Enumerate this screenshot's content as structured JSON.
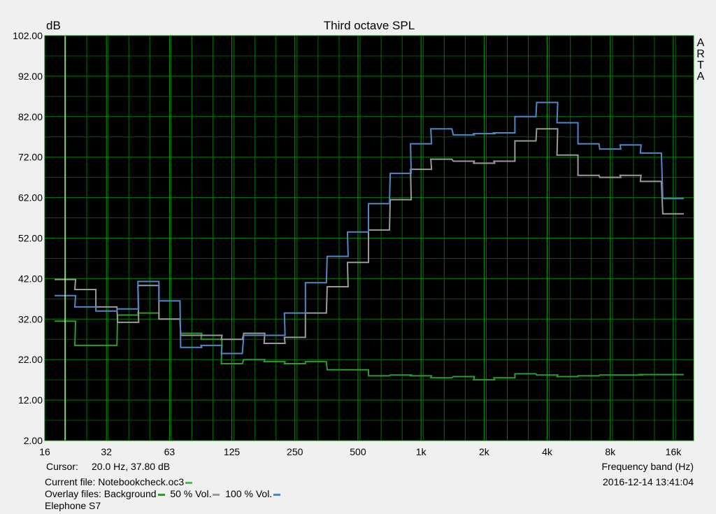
{
  "chart_data": {
    "type": "line",
    "title": "Third octave SPL",
    "ylabel": "dB",
    "xlabel": "Frequency band (Hz)",
    "watermark": "ARTA",
    "ylim": [
      2,
      102
    ],
    "y_ticks": [
      "102.00",
      "92.00",
      "82.00",
      "72.00",
      "62.00",
      "52.00",
      "42.00",
      "32.00",
      "22.00",
      "12.00",
      "2.00"
    ],
    "x_scale": "log",
    "xlim": [
      16,
      20000
    ],
    "x_ticks": [
      {
        "label": "16",
        "value": 16
      },
      {
        "label": "32",
        "value": 31.5
      },
      {
        "label": "63",
        "value": 63
      },
      {
        "label": "125",
        "value": 125
      },
      {
        "label": "250",
        "value": 250
      },
      {
        "label": "500",
        "value": 500
      },
      {
        "label": "1k",
        "value": 1000
      },
      {
        "label": "2k",
        "value": 2000
      },
      {
        "label": "4k",
        "value": 4000
      },
      {
        "label": "8k",
        "value": 8000
      },
      {
        "label": "16k",
        "value": 16000
      }
    ],
    "grid": true,
    "cursor_x": 20,
    "x": [
      20,
      25,
      31.5,
      40,
      50,
      63,
      80,
      100,
      125,
      160,
      200,
      250,
      315,
      400,
      500,
      630,
      800,
      1000,
      1250,
      1600,
      2000,
      2500,
      3150,
      4000,
      5000,
      6300,
      8000,
      10000,
      12500,
      16000
    ],
    "series": [
      {
        "name": "Background",
        "color": "#2e9a2e",
        "values": [
          31.5,
          25.5,
          25.5,
          33,
          33.5,
          32,
          28.5,
          27,
          21,
          22,
          21.5,
          21,
          21.5,
          19.5,
          19.5,
          18,
          18.2,
          18,
          17.5,
          17.8,
          17,
          17.5,
          18.5,
          18.2,
          17.8,
          18,
          18.2,
          18.2,
          18.3,
          18.3
        ]
      },
      {
        "name": "50 % Vol.",
        "color": "#9a9a9a",
        "values": [
          41.8,
          39.3,
          35,
          31.2,
          40.3,
          32,
          28,
          28,
          27,
          28.5,
          26,
          27.5,
          33.5,
          40,
          46,
          54,
          61.5,
          69,
          71.5,
          71,
          70.5,
          71,
          76,
          79,
          72.5,
          67.5,
          67,
          67.5,
          66,
          58
        ]
      },
      {
        "name": "100 % Vol.",
        "color": "#4f86c6",
        "values": [
          37.8,
          35,
          34,
          34.5,
          41.3,
          36.5,
          25,
          25.5,
          23.5,
          28,
          28,
          33.5,
          41,
          47.5,
          53.5,
          60.5,
          68,
          75.3,
          79,
          77.5,
          77.8,
          78,
          82,
          85.5,
          80.5,
          75.3,
          74,
          75,
          73,
          61.8
        ]
      }
    ]
  },
  "footer": {
    "cursor_label": "Cursor:",
    "cursor_value": "20.0 Hz, 37.80 dB",
    "current_file_label": "Current file: Notebookcheck.oc3",
    "current_file_color": "#22dd22",
    "overlay_label": "Overlay files: Background",
    "overlay_50_label": "50 % Vol.",
    "overlay_100_label": "100 % Vol.",
    "device_name": "Elephone S7",
    "x_axis_title": "Frequency band (Hz)",
    "timestamp": "2016-12-14  13:41:04"
  }
}
